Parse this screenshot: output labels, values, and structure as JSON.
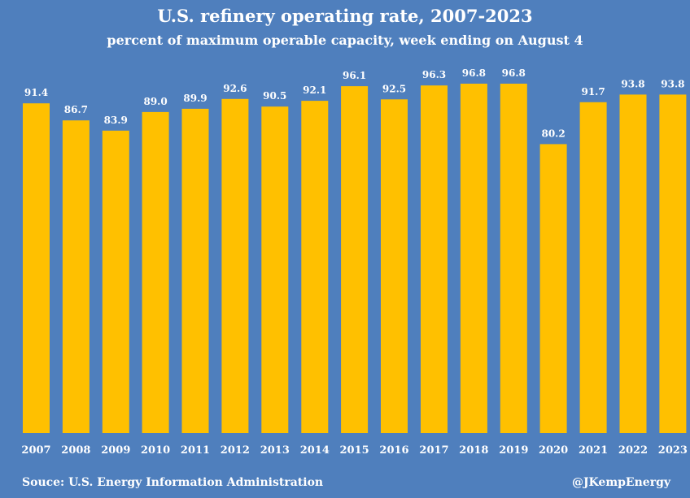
{
  "chart_data": {
    "type": "bar",
    "title": "U.S. refinery operating rate, 2007-2023",
    "subtitle": "percent of  maximum operable capacity, week ending on August 4",
    "categories": [
      "2007",
      "2008",
      "2009",
      "2010",
      "2011",
      "2012",
      "2013",
      "2014",
      "2015",
      "2016",
      "2017",
      "2018",
      "2019",
      "2020",
      "2021",
      "2022",
      "2023"
    ],
    "values": [
      91.4,
      86.7,
      83.9,
      89.0,
      89.9,
      92.6,
      90.5,
      92.1,
      96.1,
      92.5,
      96.3,
      96.8,
      96.8,
      80.2,
      91.7,
      93.8,
      93.8
    ],
    "value_labels": [
      "91.4",
      "86.7",
      "83.9",
      "89.0",
      "89.9",
      "92.6",
      "90.5",
      "92.1",
      "96.1",
      "92.5",
      "96.3",
      "96.8",
      "96.8",
      "80.2",
      "91.7",
      "93.8",
      "93.8"
    ],
    "xlabel": "",
    "ylabel": "",
    "ylim": [
      0,
      100
    ],
    "grid": false,
    "source": "Souce: U.S. Energy Information Administration",
    "credit": "@JKempEnergy",
    "colors": {
      "background": "#4f7fbd",
      "bar": "#ffc000",
      "text": "#ffffff"
    }
  }
}
